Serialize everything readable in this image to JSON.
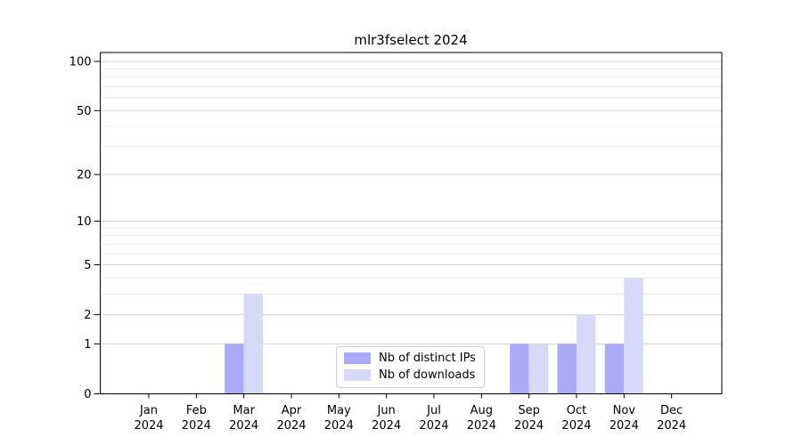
{
  "chart_data": {
    "type": "bar",
    "title": "mlr3fselect 2024",
    "categories": [
      "Jan 2024",
      "Feb 2024",
      "Mar 2024",
      "Apr 2024",
      "May 2024",
      "Jun 2024",
      "Jul 2024",
      "Aug 2024",
      "Sep 2024",
      "Oct 2024",
      "Nov 2024",
      "Dec 2024"
    ],
    "series": [
      {
        "name": "Nb of distinct IPs",
        "color": "#aaaaf8",
        "values": [
          0,
          0,
          1,
          0,
          0,
          0,
          0,
          0,
          1,
          1,
          1,
          0
        ]
      },
      {
        "name": "Nb of downloads",
        "color": "#d8d8f8",
        "values": [
          0,
          0,
          3,
          0,
          0,
          0,
          0,
          0,
          1,
          2,
          4,
          0
        ]
      }
    ],
    "yscale": "log1p",
    "yticks": [
      0,
      1,
      2,
      5,
      10,
      20,
      50,
      100
    ],
    "y_minor_ticks": [
      3,
      4,
      6,
      7,
      8,
      9,
      30,
      40,
      60,
      70,
      80,
      90
    ],
    "ylim": [
      0,
      115
    ],
    "grid": true,
    "legend_position": "inside-bottom-center",
    "colors": {
      "major_grid": "#d3d3d3",
      "minor_grid": "#ececec",
      "axis": "#000000",
      "text": "#000000"
    }
  }
}
